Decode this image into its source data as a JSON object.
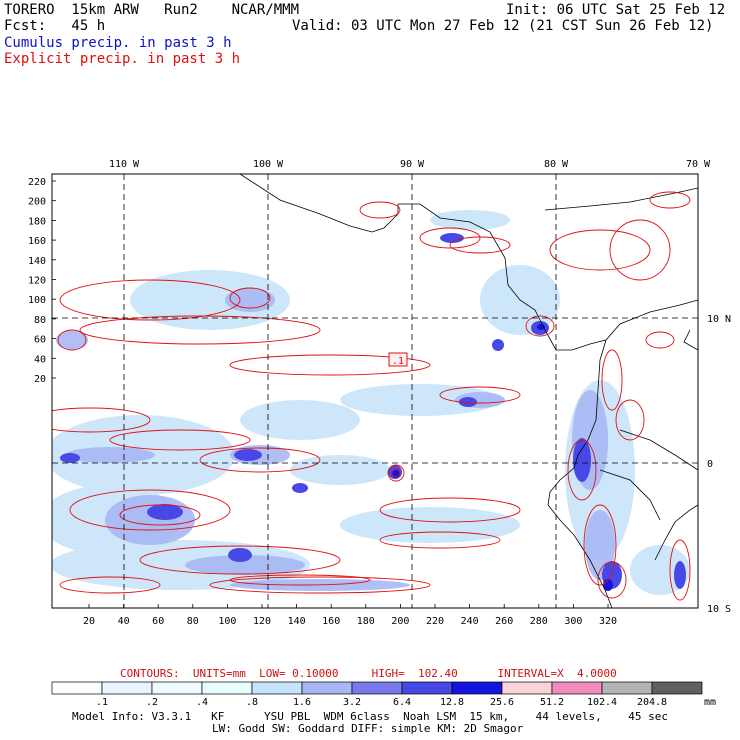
{
  "header": {
    "model": "TORERO  15km ARW   Run2    NCAR/MMM",
    "init": "Init: 06 UTC Sat 25 Feb 12",
    "fcst": "Fcst:   45 h",
    "valid": "Valid: 03 UTC Mon 27 Feb 12 (21 CST Sun 26 Feb 12)",
    "legend_cumulus": "Cumulus precip. in past 3 h",
    "legend_explicit": "Explicit precip. in past 3 h"
  },
  "map": {
    "lon_labels": [
      "110 W",
      "100 W",
      "90 W",
      "80 W",
      "70 W"
    ],
    "lat_labels": [
      "10 N",
      "0",
      "10 S"
    ],
    "y_ticks": [
      "220",
      "200",
      "180",
      "160",
      "140",
      "120",
      "100",
      "80",
      "60",
      "40",
      "20"
    ],
    "x_ticks": [
      "20",
      "40",
      "60",
      "80",
      "100",
      "120",
      "140",
      "160",
      "180",
      "200",
      "220",
      "240",
      "260",
      "280",
      "300",
      "320"
    ],
    "marker_label": ".1"
  },
  "contours": {
    "units_label": "CONTOURS:  UNITS=mm  LOW= 0.10000     HIGH=  102.40      INTERVAL=X  4.0000"
  },
  "colorbar": {
    "levels": [
      ".1",
      ".2",
      ".4",
      ".8",
      "1.6",
      "3.2",
      "6.4",
      "12.8",
      "25.6",
      "51.2",
      "102.4",
      "204.8"
    ],
    "unit": "mm",
    "colors": [
      "#ffffff",
      "#e8f4ff",
      "#f0fbff",
      "#e8fffd",
      "#c8e4fa",
      "#a8b8f4",
      "#7878ea",
      "#4848e6",
      "#1414dc",
      "#fad2d8",
      "#f08cbe",
      "#b4b4b4",
      "#606060",
      "#3a3a3a",
      "#d8a8f4"
    ]
  },
  "footer": {
    "line1": "Model Info: V3.3.1   KF      YSU PBL  WDM 6class  Noah LSM  15 km,    44 levels,    45 sec",
    "line2": "LW: Godd SW: Goddard DIFF: simple KM: 2D Smagor"
  }
}
